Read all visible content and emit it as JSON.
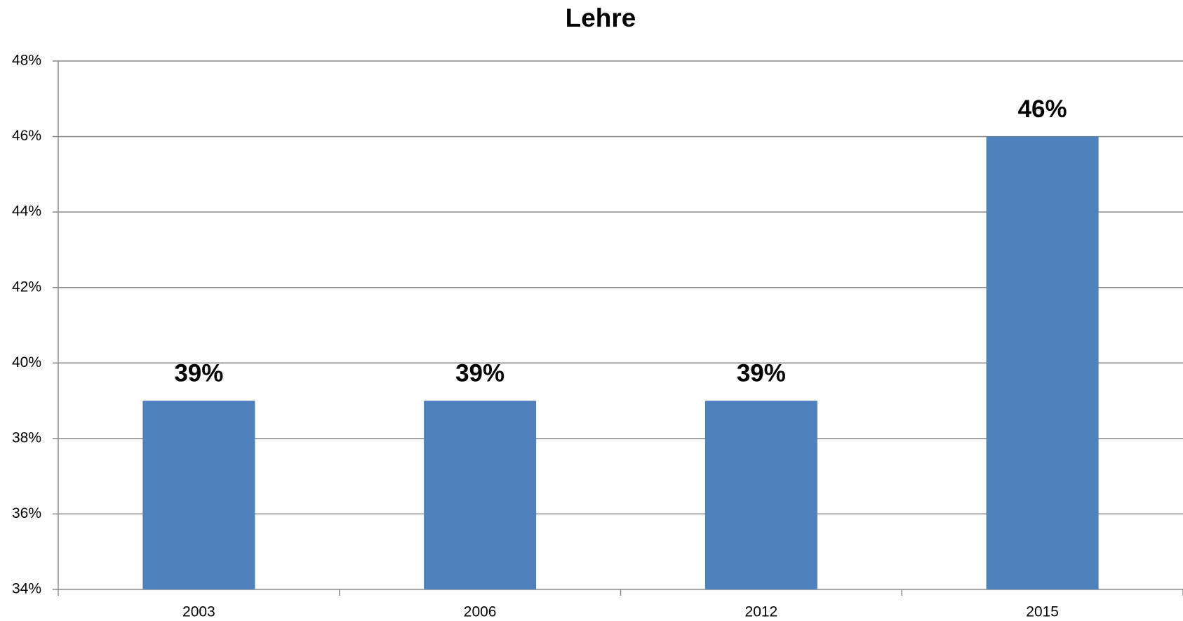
{
  "chart_data": {
    "type": "bar",
    "title": "Lehre",
    "categories": [
      "2003",
      "2006",
      "2012",
      "2015"
    ],
    "values": [
      39,
      39,
      39,
      46
    ],
    "value_labels": [
      "39%",
      "39%",
      "39%",
      "46%"
    ],
    "color": "#4f81bd",
    "ylim": [
      34,
      48
    ],
    "yticks": [
      {
        "value": 34,
        "label": "34%"
      },
      {
        "value": 36,
        "label": "36%"
      },
      {
        "value": 38,
        "label": "38%"
      },
      {
        "value": 40,
        "label": "40%"
      },
      {
        "value": 42,
        "label": "42%"
      },
      {
        "value": 44,
        "label": "44%"
      },
      {
        "value": 46,
        "label": "46%"
      },
      {
        "value": 48,
        "label": "48%"
      }
    ],
    "grid": true
  }
}
